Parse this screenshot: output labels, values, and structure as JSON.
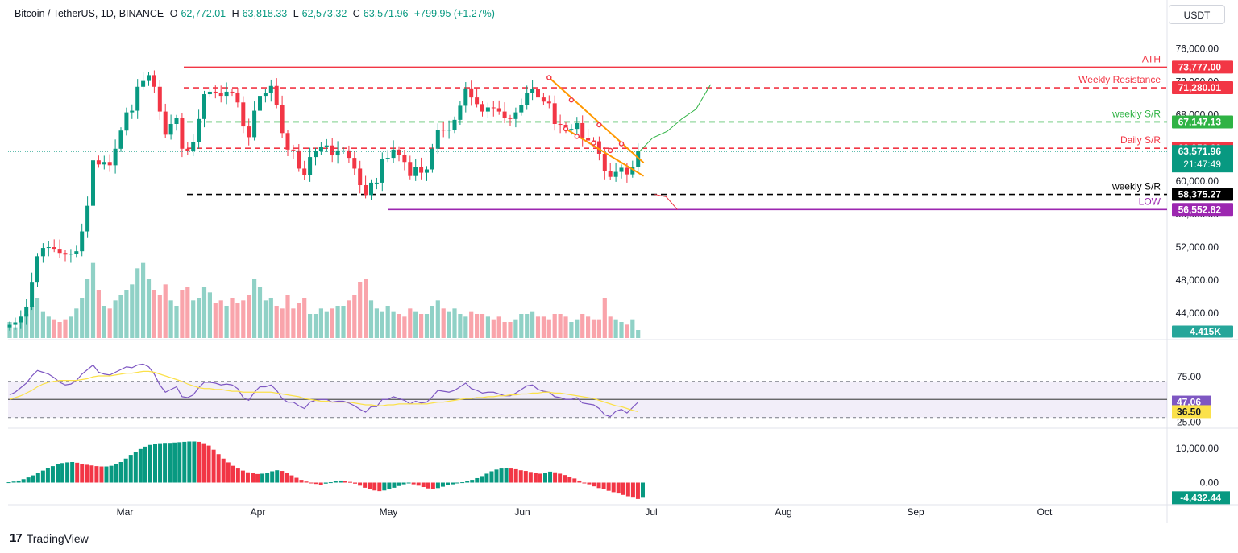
{
  "header": {
    "symbol": "Bitcoin / TetherUS, 1D, BINANCE",
    "o_label": "O",
    "o_value": "62,772.01",
    "h_label": "H",
    "h_value": "63,818.33",
    "l_label": "L",
    "l_value": "62,573.32",
    "c_label": "C",
    "c_value": "63,571.96",
    "change": "+799.95 (+1.27%)"
  },
  "currency_button": "USDT",
  "branding": "TradingView",
  "colors": {
    "up": "#089981",
    "down": "#f23645",
    "ath": "#f23645",
    "weekly_sr_green": "#2fb344",
    "low_purple": "#9c27b0",
    "support_black": "#000000",
    "pattern_orange": "#ff9800",
    "rsi_line": "#7e57c2",
    "rsi_ma": "#fbe14a"
  },
  "chart_data": [
    {
      "type": "candlestick",
      "pane": "price",
      "x_ticks": [
        "Mar",
        "Apr",
        "May",
        "Jun",
        "Jul",
        "Aug",
        "Sep",
        "Oct"
      ],
      "y_ticks": [
        "76,000.00",
        "72,000.00",
        "68,000.00",
        "64,000.00",
        "60,000.00",
        "56,000.00",
        "52,000.00",
        "48,000.00",
        "44,000.00"
      ],
      "ylim": [
        41000,
        78000
      ],
      "last_price": "63,571.96",
      "countdown": "21:47:49",
      "volume_last": "4.415K",
      "levels": [
        {
          "name": "ATH",
          "value": 73777,
          "label": "73,777.00",
          "style": "solid",
          "color": "#f23645"
        },
        {
          "name": "Weekly Resistance",
          "value": 71280.01,
          "label": "71,280.01",
          "style": "dashed",
          "color": "#f23645"
        },
        {
          "name": "weekly S/R",
          "value": 67147.13,
          "label": "67,147.13",
          "style": "dashed",
          "color": "#2fb344"
        },
        {
          "name": "Daily S/R",
          "value": 63956.62,
          "label": "63,956.62",
          "style": "dashed",
          "color": "#f23645"
        },
        {
          "name": "weekly S/R",
          "value": 58375.27,
          "label": "58,375.27",
          "style": "dashed",
          "color": "#000000"
        },
        {
          "name": "LOW",
          "value": 56552.82,
          "label": "56,552.82",
          "style": "solid",
          "color": "#9c27b0"
        }
      ],
      "closes": [
        42600,
        42900,
        43600,
        44800,
        47800,
        50900,
        51900,
        52000,
        51800,
        51300,
        51100,
        51200,
        51500,
        53900,
        57000,
        62500,
        62000,
        62300,
        61900,
        63900,
        66100,
        68300,
        68500,
        71400,
        72100,
        72800,
        71400,
        68400,
        65600,
        66900,
        67600,
        63900,
        63600,
        64700,
        67500,
        70500,
        70800,
        70600,
        70300,
        70800,
        70700,
        69500,
        66600,
        65300,
        68500,
        70300,
        70600,
        71500,
        69200,
        65800,
        63800,
        63700,
        61500,
        60700,
        62900,
        63600,
        64100,
        64300,
        63100,
        63700,
        63700,
        62800,
        61500,
        59500,
        58300,
        59800,
        59800,
        62700,
        62800,
        63800,
        63200,
        62300,
        60600,
        61700,
        61000,
        61400,
        63900,
        66200,
        66100,
        66200,
        67400,
        69100,
        71200,
        70100,
        69300,
        68400,
        68900,
        68800,
        68400,
        67600,
        67500,
        68300,
        69200,
        70600,
        71100,
        70100,
        69600,
        69400,
        66900,
        66800,
        66200,
        66300,
        67000,
        65200,
        64900,
        64800,
        63300,
        61200,
        60500,
        61100,
        61600,
        60800,
        61700,
        63600
      ],
      "volumes": [
        6,
        4,
        7,
        9,
        12,
        15,
        10,
        8,
        7,
        6,
        7,
        8,
        11,
        15,
        22,
        28,
        18,
        12,
        11,
        14,
        16,
        18,
        20,
        26,
        28,
        22,
        18,
        16,
        20,
        14,
        12,
        18,
        19,
        14,
        15,
        19,
        17,
        13,
        14,
        12,
        15,
        13,
        14,
        16,
        22,
        19,
        14,
        15,
        12,
        11,
        16,
        11,
        13,
        15,
        9,
        9,
        11,
        10,
        11,
        12,
        12,
        14,
        16,
        21,
        22,
        14,
        11,
        10,
        12,
        10,
        9,
        8,
        11,
        10,
        9,
        9,
        12,
        14,
        11,
        10,
        11,
        9,
        8,
        10,
        9,
        9,
        8,
        7,
        8,
        6,
        6,
        7,
        9,
        9,
        10,
        8,
        8,
        7,
        9,
        9,
        8,
        6,
        7,
        9,
        8,
        7,
        7,
        15,
        8,
        7,
        6,
        5,
        7,
        3
      ],
      "forecast_bull": [
        63600,
        64800,
        66200,
        67100,
        68900,
        71280
      ],
      "forecast_bear": [
        58375,
        57800,
        56552
      ]
    },
    {
      "type": "line",
      "pane": "rsi",
      "y_ticks": [
        "75.00",
        "25.00"
      ],
      "band": [
        30,
        70
      ],
      "ylim": [
        20,
        100
      ],
      "rsi_value": "47.06",
      "rsi_ma_value": "36.50",
      "series": [
        {
          "name": "RSI",
          "values": [
            55,
            58,
            63,
            68,
            76,
            82,
            80,
            78,
            74,
            69,
            66,
            67,
            71,
            78,
            83,
            88,
            80,
            78,
            77,
            80,
            83,
            86,
            85,
            88,
            89,
            86,
            78,
            66,
            58,
            61,
            64,
            53,
            52,
            55,
            63,
            69,
            69,
            68,
            66,
            67,
            66,
            62,
            52,
            49,
            58,
            64,
            64,
            66,
            60,
            51,
            47,
            47,
            43,
            40,
            47,
            49,
            50,
            50,
            47,
            48,
            48,
            46,
            43,
            39,
            36,
            42,
            42,
            50,
            50,
            53,
            51,
            49,
            45,
            48,
            46,
            47,
            53,
            60,
            59,
            58,
            60,
            64,
            68,
            62,
            60,
            57,
            58,
            58,
            56,
            54,
            54,
            57,
            61,
            65,
            66,
            61,
            59,
            58,
            53,
            52,
            50,
            50,
            52,
            46,
            45,
            44,
            40,
            33,
            31,
            37,
            39,
            35,
            41,
            47
          ]
        },
        {
          "name": "RSI MA",
          "values": [
            50,
            52,
            54,
            57,
            60,
            64,
            67,
            69,
            70,
            71,
            71,
            71,
            71,
            72,
            73,
            75,
            76,
            76,
            76,
            77,
            78,
            79,
            79,
            80,
            81,
            81,
            80,
            78,
            76,
            74,
            72,
            70,
            67,
            65,
            63,
            62,
            62,
            61,
            61,
            60,
            59,
            59,
            58,
            58,
            58,
            58,
            58,
            58,
            57,
            56,
            55,
            54,
            53,
            51,
            50,
            49,
            48,
            48,
            47,
            47,
            47,
            47,
            46,
            45,
            44,
            44,
            43,
            43,
            44,
            44,
            45,
            45,
            45,
            45,
            45,
            45,
            46,
            47,
            47,
            48,
            49,
            50,
            51,
            51,
            52,
            52,
            53,
            53,
            54,
            54,
            55,
            55,
            56,
            56,
            57,
            57,
            58,
            58,
            57,
            57,
            56,
            55,
            54,
            53,
            52,
            51,
            49,
            47,
            45,
            43,
            42,
            40,
            38,
            36.5
          ]
        }
      ]
    },
    {
      "type": "bar",
      "pane": "macd",
      "y_ticks": [
        "10,000.00",
        "0.00"
      ],
      "ylim": [
        -6000,
        14000
      ],
      "histogram_value": "-4,432.44",
      "values": [
        100,
        300,
        600,
        1000,
        1500,
        2100,
        2800,
        3500,
        4200,
        4800,
        5300,
        5700,
        5900,
        6000,
        5800,
        5500,
        5200,
        5000,
        4800,
        4700,
        4700,
        4900,
        5300,
        6000,
        7000,
        8100,
        9000,
        9800,
        10500,
        11000,
        11300,
        11500,
        11600,
        11600,
        11700,
        11800,
        11900,
        12000,
        12000,
        11900,
        11500,
        10800,
        9600,
        8300,
        7000,
        5900,
        4900,
        4100,
        3500,
        3000,
        2700,
        2500,
        2600,
        2900,
        3300,
        3600,
        3400,
        2900,
        2100,
        1400,
        800,
        300,
        -100,
        -400,
        -600,
        -300,
        100,
        400,
        600,
        500,
        200,
        -300,
        -900,
        -1500,
        -2000,
        -2300,
        -2500,
        -2300,
        -1900,
        -1500,
        -1000,
        -500,
        -200,
        -500,
        -900,
        -1300,
        -1700,
        -1800,
        -1600,
        -1200,
        -800,
        -500,
        -200,
        100,
        400,
        800,
        1300,
        1900,
        2600,
        3300,
        3800,
        4100,
        4200,
        4100,
        3900,
        3600,
        3400,
        3100,
        2900,
        2600,
        2800,
        3200,
        3000,
        2600,
        2200,
        1700,
        1200,
        600,
        0,
        -500,
        -1100,
        -1600,
        -2000,
        -2400,
        -2800,
        -3200,
        -3600,
        -4000,
        -4400,
        -4800,
        -4432
      ]
    }
  ]
}
